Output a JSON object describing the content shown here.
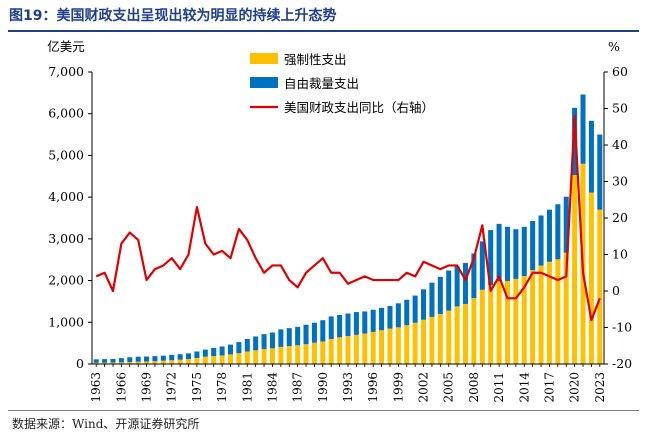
{
  "figure": {
    "title": "图19：美国财政支出呈现出较为明显的持续上升态势",
    "source": "数据来源：Wind、开源证券研究所"
  },
  "chart_data": {
    "type": "bar",
    "stacked": true,
    "x": [
      1963,
      1964,
      1965,
      1966,
      1967,
      1968,
      1969,
      1970,
      1971,
      1972,
      1973,
      1974,
      1975,
      1976,
      1977,
      1978,
      1979,
      1980,
      1981,
      1982,
      1983,
      1984,
      1985,
      1986,
      1987,
      1988,
      1989,
      1990,
      1991,
      1992,
      1993,
      1994,
      1995,
      1996,
      1997,
      1998,
      1999,
      2000,
      2001,
      2002,
      2003,
      2004,
      2005,
      2006,
      2007,
      2008,
      2009,
      2010,
      2011,
      2012,
      2013,
      2014,
      2015,
      2016,
      2017,
      2018,
      2019,
      2020,
      2021,
      2022,
      2023
    ],
    "x_tick_labels": [
      "1963",
      "1966",
      "1969",
      "1972",
      "1975",
      "1978",
      "1981",
      "1984",
      "1987",
      "1990",
      "1993",
      "1996",
      "1999",
      "2002",
      "2005",
      "2008",
      "2011",
      "2014",
      "2017",
      "2020",
      "2023"
    ],
    "y_left_label": "亿美元",
    "y_left_range": [
      0,
      7000
    ],
    "y_left_ticks": [
      "0",
      "1,000",
      "2,000",
      "3,000",
      "4,000",
      "5,000",
      "6,000",
      "7,000"
    ],
    "y_right_label": "%",
    "y_right_range": [
      -20,
      60
    ],
    "y_right_ticks": [
      "-20",
      "-10",
      "0",
      "10",
      "20",
      "30",
      "40",
      "50",
      "60"
    ],
    "grid": false,
    "legend_position": "top-center",
    "series": [
      {
        "name": "强制性支出",
        "kind": "bar",
        "axis": "left",
        "color": "#ffc000",
        "values": [
          30,
          33,
          35,
          40,
          48,
          54,
          60,
          67,
          80,
          90,
          105,
          120,
          145,
          175,
          190,
          205,
          230,
          260,
          300,
          330,
          360,
          375,
          410,
          430,
          450,
          475,
          510,
          540,
          600,
          640,
          670,
          700,
          730,
          770,
          810,
          850,
          880,
          930,
          990,
          1060,
          1130,
          1200,
          1280,
          1380,
          1440,
          1580,
          1780,
          1890,
          1980,
          1990,
          2040,
          2110,
          2250,
          2360,
          2450,
          2510,
          2670,
          4530,
          4800,
          4110,
          3700
        ]
      },
      {
        "name": "自由裁量支出",
        "kind": "bar",
        "axis": "left",
        "color": "#0070c0",
        "values": [
          82,
          84,
          86,
          100,
          114,
          121,
          120,
          121,
          120,
          130,
          130,
          135,
          155,
          170,
          195,
          215,
          235,
          265,
          300,
          330,
          355,
          380,
          420,
          430,
          440,
          465,
          480,
          510,
          540,
          535,
          540,
          545,
          530,
          530,
          535,
          540,
          575,
          610,
          650,
          730,
          820,
          890,
          960,
          960,
          980,
          1070,
          1160,
          1320,
          1380,
          1300,
          1190,
          1180,
          1180,
          1200,
          1250,
          1320,
          1340,
          1610,
          1660,
          1720,
          1800
        ]
      },
      {
        "name": "美国财政支出同比（右轴）",
        "kind": "line",
        "axis": "right",
        "color": "#e00000",
        "values": [
          4,
          5,
          0,
          13,
          16,
          14,
          3,
          6,
          7,
          9,
          6,
          10,
          23,
          13,
          10,
          11,
          9,
          17,
          14,
          9,
          5,
          7,
          7,
          3,
          1,
          5,
          7,
          9,
          5,
          5,
          2,
          3,
          4,
          3,
          3,
          3,
          3,
          5,
          4,
          8,
          7,
          6,
          7,
          7,
          3,
          9,
          18,
          0,
          4,
          -2,
          -2,
          1,
          5,
          5,
          4,
          3,
          4,
          48,
          5,
          -8,
          -2
        ]
      }
    ]
  }
}
